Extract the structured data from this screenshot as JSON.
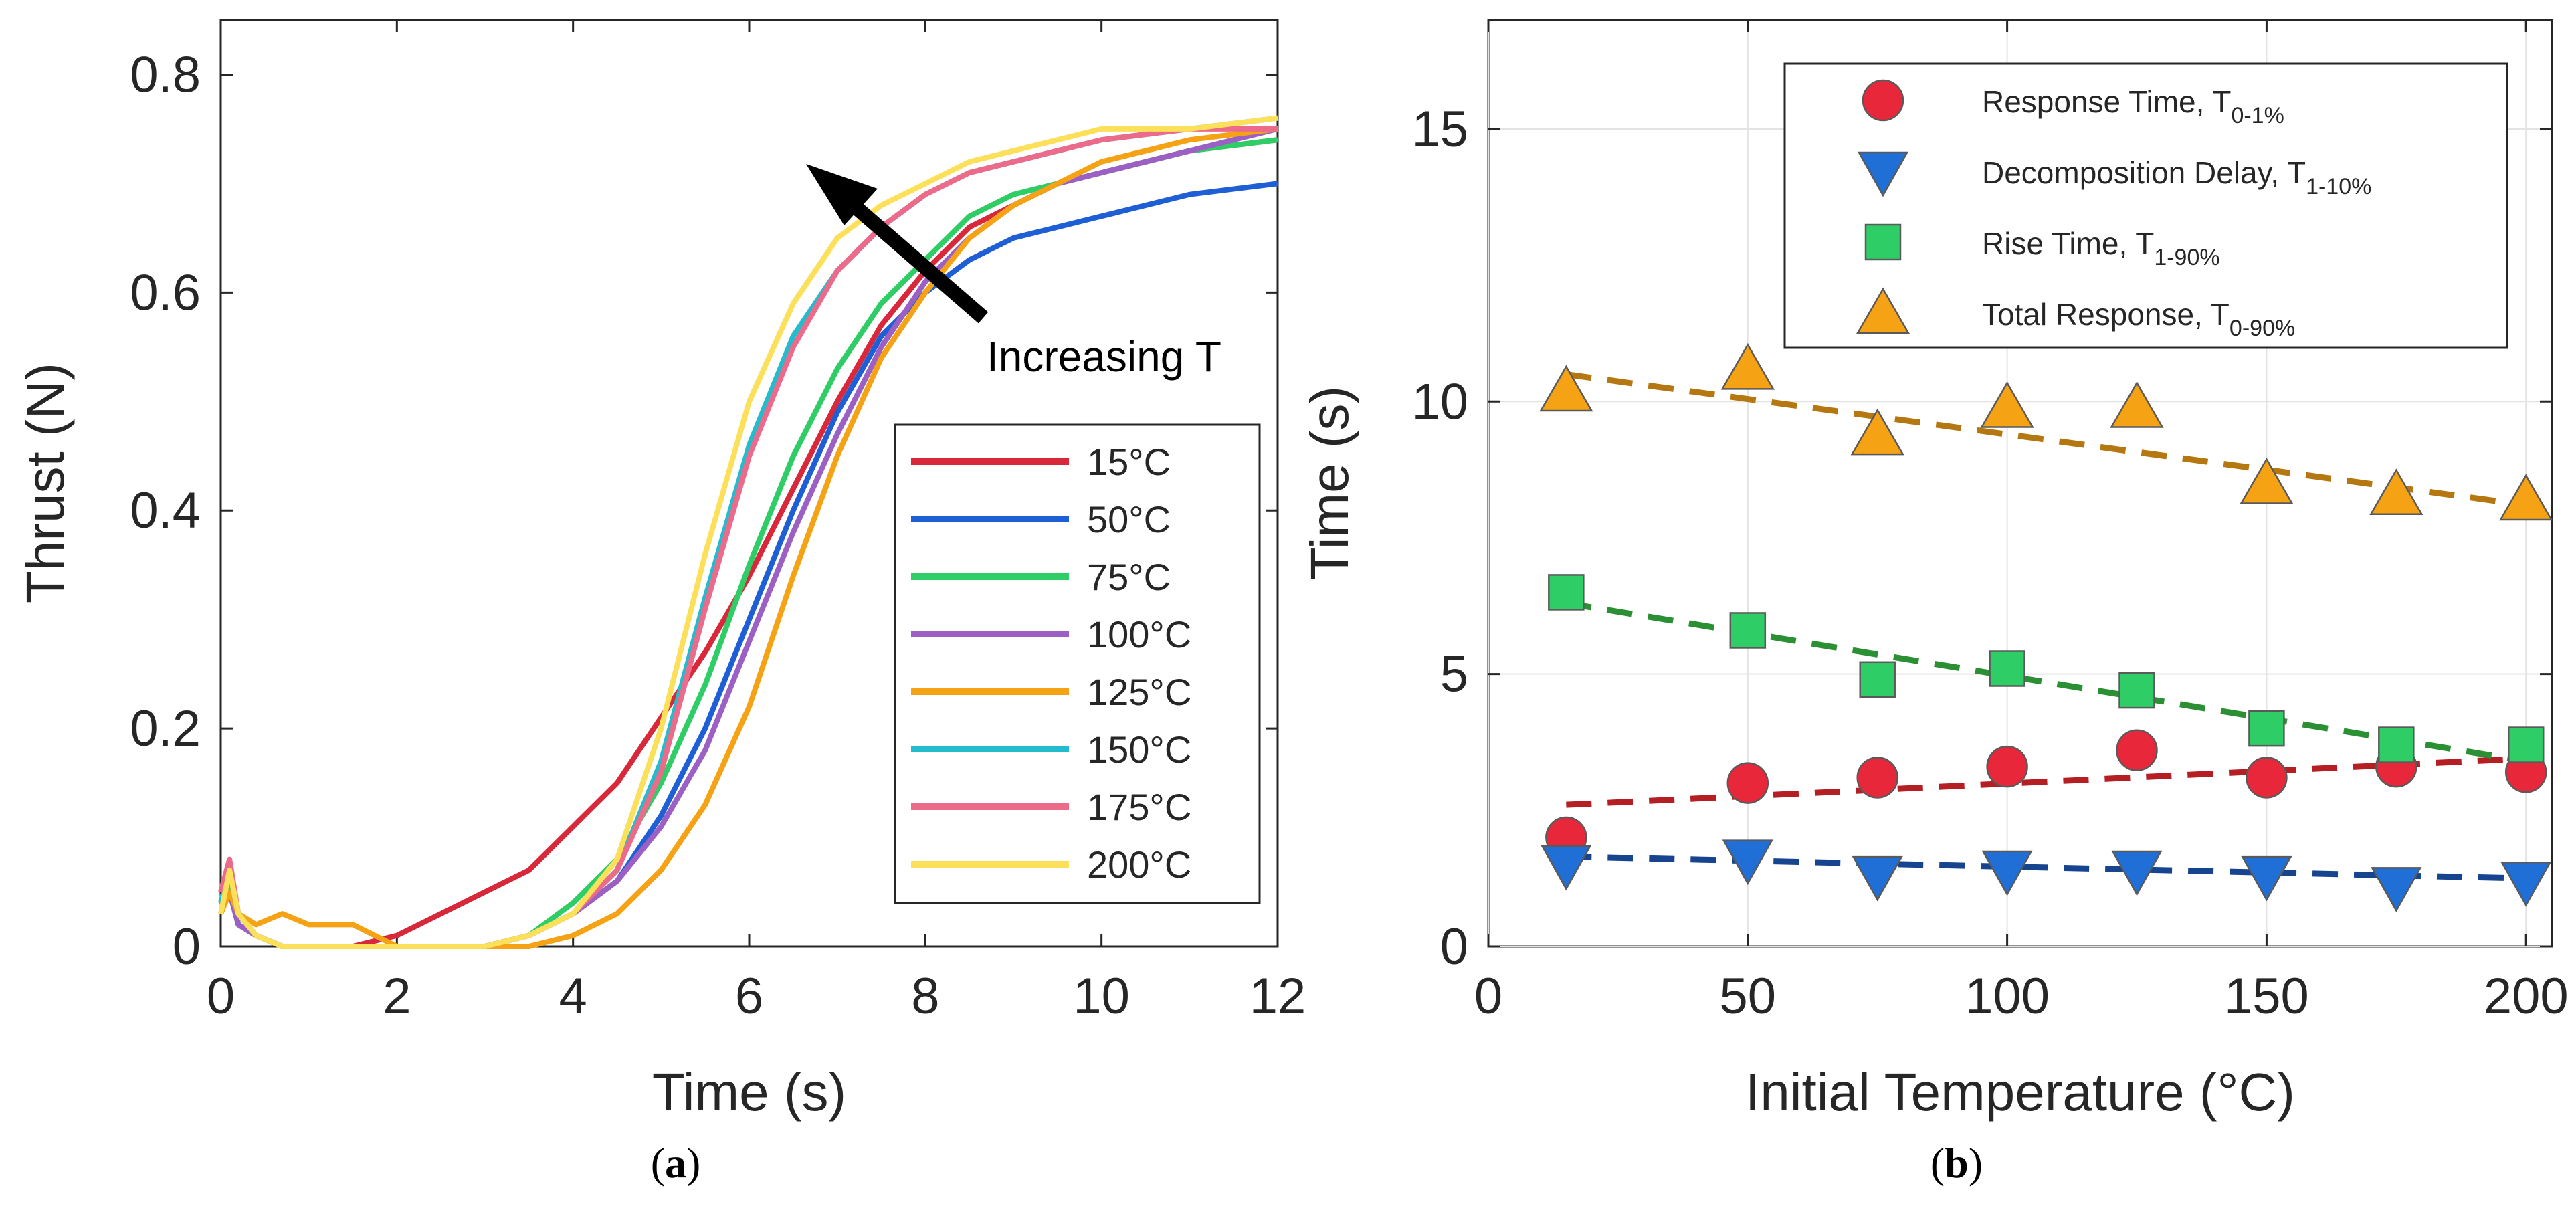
{
  "chart_data": [
    {
      "panel": "a",
      "type": "line",
      "panel_label": {
        "open": "(",
        "letter": "a",
        "close": ")"
      },
      "xlabel": "Time (s)",
      "ylabel": "Thrust (N)",
      "xlim": [
        0,
        12
      ],
      "ylim": [
        0,
        0.85
      ],
      "xticks": [
        0,
        2,
        4,
        6,
        8,
        10,
        12
      ],
      "yticks": [
        0,
        0.2,
        0.4,
        0.6,
        0.8
      ],
      "xtick_labels": [
        "0",
        "2",
        "4",
        "6",
        "8",
        "10",
        "12"
      ],
      "ytick_labels": [
        "0",
        "0.2",
        "0.4",
        "0.6",
        "0.8"
      ],
      "grid": false,
      "annotation": "Increasing T",
      "legend_position": "lower-right",
      "series": [
        {
          "name": "15°C",
          "color": "#d8283a",
          "x": [
            0,
            0.1,
            0.2,
            0.4,
            0.7,
            1.0,
            1.5,
            2.0,
            2.5,
            3.0,
            3.5,
            4.0,
            4.5,
            5.0,
            5.5,
            6.0,
            6.5,
            7.0,
            7.5,
            8.0,
            8.5,
            9.0,
            9.5,
            10.0,
            11.0,
            12.0
          ],
          "y": [
            0.04,
            0.06,
            0.02,
            0.01,
            0.0,
            0.0,
            0.0,
            0.01,
            0.03,
            0.05,
            0.07,
            0.11,
            0.15,
            0.21,
            0.27,
            0.34,
            0.42,
            0.5,
            0.57,
            0.62,
            0.66,
            0.68,
            0.7,
            0.71,
            0.73,
            0.74
          ]
        },
        {
          "name": "50°C",
          "color": "#1f5fd6",
          "x": [
            0,
            0.1,
            0.2,
            0.4,
            0.7,
            1.0,
            1.5,
            2.0,
            2.5,
            3.0,
            3.5,
            4.0,
            4.5,
            5.0,
            5.5,
            6.0,
            6.5,
            7.0,
            7.5,
            8.0,
            8.5,
            9.0,
            9.5,
            10.0,
            11.0,
            12.0
          ],
          "y": [
            0.03,
            0.05,
            0.02,
            0.01,
            0.0,
            0.0,
            0.0,
            0.0,
            0.0,
            0.0,
            0.01,
            0.03,
            0.06,
            0.12,
            0.2,
            0.3,
            0.4,
            0.49,
            0.56,
            0.6,
            0.63,
            0.65,
            0.66,
            0.67,
            0.69,
            0.7
          ]
        },
        {
          "name": "75°C",
          "color": "#2fcd66",
          "x": [
            0,
            0.1,
            0.2,
            0.4,
            0.7,
            1.0,
            1.5,
            2.0,
            2.5,
            3.0,
            3.5,
            4.0,
            4.5,
            5.0,
            5.5,
            6.0,
            6.5,
            7.0,
            7.5,
            8.0,
            8.5,
            9.0,
            9.5,
            10.0,
            11.0,
            12.0
          ],
          "y": [
            0.03,
            0.06,
            0.02,
            0.01,
            0.0,
            0.0,
            0.0,
            0.0,
            0.0,
            0.0,
            0.01,
            0.04,
            0.08,
            0.15,
            0.24,
            0.35,
            0.45,
            0.53,
            0.59,
            0.63,
            0.67,
            0.69,
            0.7,
            0.71,
            0.73,
            0.74
          ]
        },
        {
          "name": "100°C",
          "color": "#9c5fc4",
          "x": [
            0,
            0.1,
            0.2,
            0.4,
            0.7,
            1.0,
            1.5,
            2.0,
            2.5,
            3.0,
            3.5,
            4.0,
            4.5,
            5.0,
            5.5,
            6.0,
            6.5,
            7.0,
            7.5,
            8.0,
            8.5,
            9.0,
            9.5,
            10.0,
            11.0,
            12.0
          ],
          "y": [
            0.04,
            0.05,
            0.02,
            0.01,
            0.0,
            0.0,
            0.0,
            0.0,
            0.0,
            0.0,
            0.01,
            0.03,
            0.06,
            0.11,
            0.18,
            0.28,
            0.38,
            0.47,
            0.55,
            0.61,
            0.65,
            0.68,
            0.7,
            0.71,
            0.73,
            0.75
          ]
        },
        {
          "name": "125°C",
          "color": "#f5a214",
          "x": [
            0,
            0.1,
            0.2,
            0.4,
            0.7,
            1.0,
            1.5,
            2.0,
            2.5,
            3.0,
            3.5,
            4.0,
            4.5,
            5.0,
            5.5,
            6.0,
            6.5,
            7.0,
            7.5,
            8.0,
            8.5,
            9.0,
            9.5,
            10.0,
            11.0,
            12.0
          ],
          "y": [
            0.03,
            0.05,
            0.03,
            0.02,
            0.03,
            0.02,
            0.02,
            0.0,
            0.0,
            0.0,
            0.0,
            0.01,
            0.03,
            0.07,
            0.13,
            0.22,
            0.34,
            0.45,
            0.54,
            0.6,
            0.65,
            0.68,
            0.7,
            0.72,
            0.74,
            0.75
          ]
        },
        {
          "name": "150°C",
          "color": "#22bccd",
          "x": [
            0,
            0.1,
            0.2,
            0.4,
            0.7,
            1.0,
            1.5,
            2.0,
            2.5,
            3.0,
            3.5,
            4.0,
            4.5,
            5.0,
            5.5,
            6.0,
            6.5,
            7.0,
            7.5,
            8.0,
            8.5,
            9.0,
            9.5,
            10.0,
            11.0,
            12.0
          ],
          "y": [
            0.04,
            0.07,
            0.03,
            0.01,
            0.0,
            0.0,
            0.0,
            0.0,
            0.0,
            0.0,
            0.01,
            0.03,
            0.07,
            0.17,
            0.32,
            0.46,
            0.56,
            0.62,
            0.66,
            0.69,
            0.71,
            0.72,
            0.73,
            0.74,
            0.75,
            0.76
          ]
        },
        {
          "name": "175°C",
          "color": "#ec6a8a",
          "x": [
            0,
            0.1,
            0.2,
            0.4,
            0.7,
            1.0,
            1.5,
            2.0,
            2.5,
            3.0,
            3.5,
            4.0,
            4.5,
            5.0,
            5.5,
            6.0,
            6.5,
            7.0,
            7.5,
            8.0,
            8.5,
            9.0,
            9.5,
            10.0,
            11.0,
            12.0
          ],
          "y": [
            0.05,
            0.08,
            0.03,
            0.01,
            0.0,
            0.0,
            0.0,
            0.0,
            0.0,
            0.0,
            0.01,
            0.03,
            0.07,
            0.16,
            0.31,
            0.45,
            0.55,
            0.62,
            0.66,
            0.69,
            0.71,
            0.72,
            0.73,
            0.74,
            0.75,
            0.75
          ]
        },
        {
          "name": "200°C",
          "color": "#fde05a",
          "x": [
            0,
            0.1,
            0.2,
            0.4,
            0.7,
            1.0,
            1.5,
            2.0,
            2.5,
            3.0,
            3.5,
            4.0,
            4.5,
            5.0,
            5.5,
            6.0,
            6.5,
            7.0,
            7.5,
            8.0,
            8.5,
            9.0,
            9.5,
            10.0,
            11.0,
            12.0
          ],
          "y": [
            0.03,
            0.07,
            0.03,
            0.01,
            0.0,
            0.0,
            0.0,
            0.0,
            0.0,
            0.0,
            0.01,
            0.03,
            0.08,
            0.2,
            0.36,
            0.5,
            0.59,
            0.65,
            0.68,
            0.7,
            0.72,
            0.73,
            0.74,
            0.75,
            0.75,
            0.76
          ]
        }
      ]
    },
    {
      "panel": "b",
      "type": "scatter",
      "panel_label": {
        "open": "(",
        "letter": "b",
        "close": ")"
      },
      "xlabel": "Initial Temperature (°C)",
      "ylabel": "Time (s)",
      "xlim": [
        0,
        205
      ],
      "ylim": [
        0,
        17
      ],
      "xticks": [
        0,
        50,
        100,
        150,
        200
      ],
      "yticks": [
        0,
        5,
        10,
        15
      ],
      "xtick_labels": [
        "0",
        "50",
        "100",
        "150",
        "200"
      ],
      "ytick_labels": [
        "0",
        "5",
        "10",
        "15"
      ],
      "grid": true,
      "legend_position": "top-right",
      "series": [
        {
          "name": "Response Time, T",
          "sub": "0-1%",
          "marker": "circle",
          "color": "#e8283a",
          "fit_color": "#b51e23",
          "x": [
            15,
            50,
            75,
            100,
            125,
            150,
            175,
            200
          ],
          "y": [
            2.0,
            3.0,
            3.1,
            3.3,
            3.6,
            3.1,
            3.3,
            3.2
          ],
          "fit": [
            2.6,
            3.45
          ]
        },
        {
          "name": "Decomposition Delay, T",
          "sub": "1-10%",
          "marker": "triangle-down",
          "color": "#1f6fd6",
          "fit_color": "#16448f",
          "x": [
            15,
            50,
            75,
            100,
            125,
            150,
            175,
            200
          ],
          "y": [
            1.5,
            1.6,
            1.3,
            1.4,
            1.4,
            1.3,
            1.1,
            1.2
          ],
          "fit": [
            1.65,
            1.25
          ]
        },
        {
          "name": "Rise Time, T",
          "sub": "1-90%",
          "marker": "square",
          "color": "#2fcd66",
          "fit_color": "#2a9033",
          "x": [
            15,
            50,
            75,
            100,
            125,
            150,
            175,
            200
          ],
          "y": [
            6.5,
            5.8,
            4.9,
            5.1,
            4.7,
            4.0,
            3.7,
            3.7
          ],
          "fit": [
            6.3,
            3.4
          ]
        },
        {
          "name": "Total Response, T",
          "sub": "0-90%",
          "marker": "triangle-up",
          "color": "#f5a214",
          "fit_color": "#b57710",
          "x": [
            15,
            50,
            75,
            100,
            125,
            150,
            175,
            200
          ],
          "y": [
            10.2,
            10.6,
            9.4,
            9.9,
            9.9,
            8.5,
            8.3,
            8.2
          ],
          "fit": [
            10.5,
            8.1
          ]
        }
      ]
    }
  ]
}
